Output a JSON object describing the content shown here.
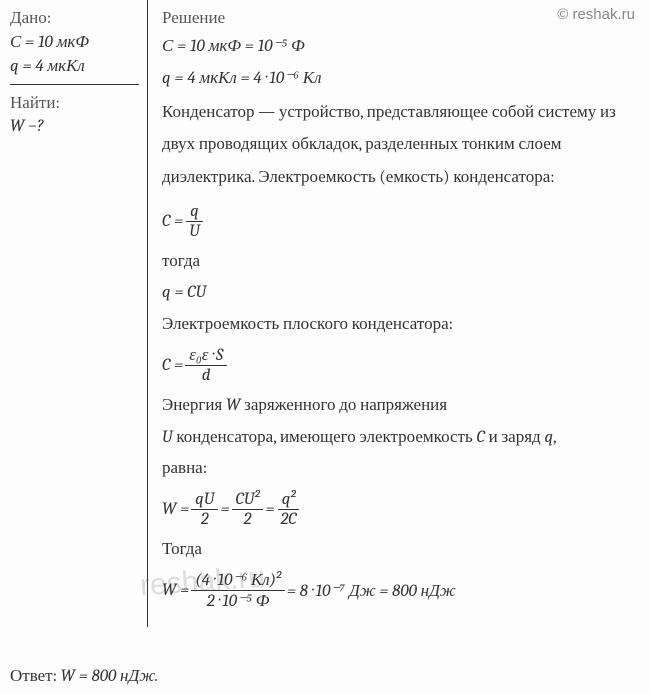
{
  "watermark_top": "© reshak.ru",
  "watermark_center": "reshak.ru",
  "given": {
    "header": "Дано:",
    "c_line": "С = 10 мкФ",
    "q_line": "q = 4 мкКл",
    "find_header": "Найти:",
    "find_var": "W −?"
  },
  "solution": {
    "header": "Решение",
    "c_conv": "С = 10 мкФ = 10⁻⁵ Ф",
    "q_conv": "q = 4 мкКл = 4 · 10⁻⁶ Кл",
    "para1": "Конденсатор — устройство, представляющее собой систему из двух проводящих обкладок, разделенных тонким слоем диэлектрика. Электроемкость (емкость) конденсатора:",
    "formula_c_eq": {
      "lhs": "C =",
      "num": "q",
      "den": "U"
    },
    "then1": "тогда",
    "formula_q": "q = CU",
    "para2": "Электроемкость плоского конденсатора:",
    "formula_c2": {
      "lhs": "C =",
      "num": "ε₀ε · S",
      "den": "d"
    },
    "para3_a": "Энергия ",
    "para3_w": "W",
    "para3_b": " заряженного до напряжения",
    "para3_c_prefix": "U",
    "para3_c": " конденсатора, имеющего электроемкость ",
    "para3_c_var": "C",
    "para3_c2": " и заряд ",
    "para3_q": "q",
    "para3_c3": ",",
    "para3_d": "равна:",
    "formula_w": {
      "lhs": "W =",
      "f1_num": "qU",
      "f1_den": "2",
      "eq1": " = ",
      "f2_num": "CU²",
      "f2_den": "2",
      "eq2": " = ",
      "f3_num": "q²",
      "f3_den": "2C"
    },
    "then2": " Тогда",
    "formula_final": {
      "lhs": "W =",
      "num": "(4 · 10⁻⁶ Кл)²",
      "den": "2 · 10⁻⁵ Ф",
      "result": " = 8 · 10⁻⁷ Дж = 800 нДж"
    }
  },
  "answer": {
    "label": "Ответ: ",
    "value": "W = 800 нДж."
  }
}
